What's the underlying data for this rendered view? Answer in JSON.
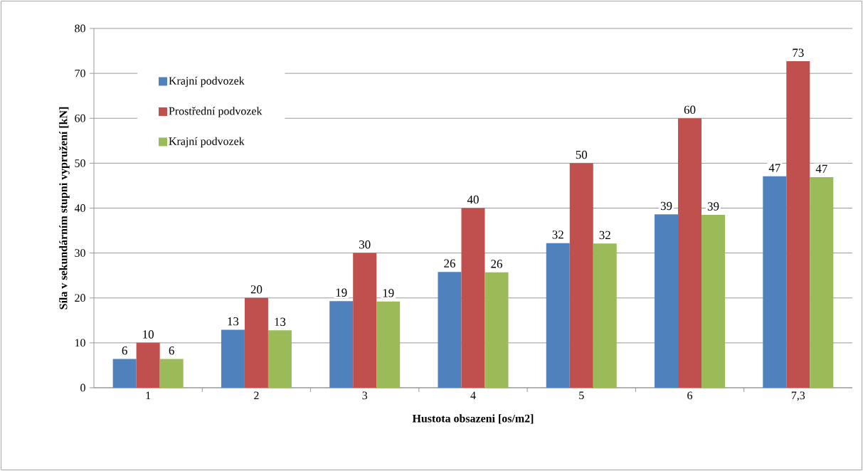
{
  "chart_data": {
    "type": "bar",
    "xlabel": "Hustota obsazeni [os/m2]",
    "ylabel": "Síla v sekundárním stupni vypružení [kN]",
    "categories": [
      "1",
      "2",
      "3",
      "4",
      "5",
      "6",
      "7,3"
    ],
    "series": [
      {
        "name": "Krajní podvozek",
        "color": "#4f81bd",
        "values": [
          6.4,
          12.9,
          19.3,
          25.8,
          32.2,
          38.6,
          47.1
        ],
        "value_labels": [
          "6",
          "13",
          "19",
          "26",
          "32",
          "39",
          "47"
        ]
      },
      {
        "name": "Prostřední podvozek",
        "color": "#c0504d",
        "values": [
          10,
          20,
          30,
          40,
          50,
          60,
          72.7
        ],
        "value_labels": [
          "10",
          "20",
          "30",
          "40",
          "50",
          "60",
          "73"
        ]
      },
      {
        "name": "Krajní podvozek",
        "color": "#9bbb59",
        "values": [
          6.4,
          12.8,
          19.2,
          25.7,
          32.1,
          38.5,
          46.9
        ],
        "value_labels": [
          "6",
          "13",
          "19",
          "26",
          "32",
          "39",
          "47"
        ]
      }
    ],
    "ylim": [
      0,
      80
    ],
    "yticks": [
      0,
      10,
      20,
      30,
      40,
      50,
      60,
      70,
      80
    ],
    "grid": "y",
    "legend": "top left"
  }
}
